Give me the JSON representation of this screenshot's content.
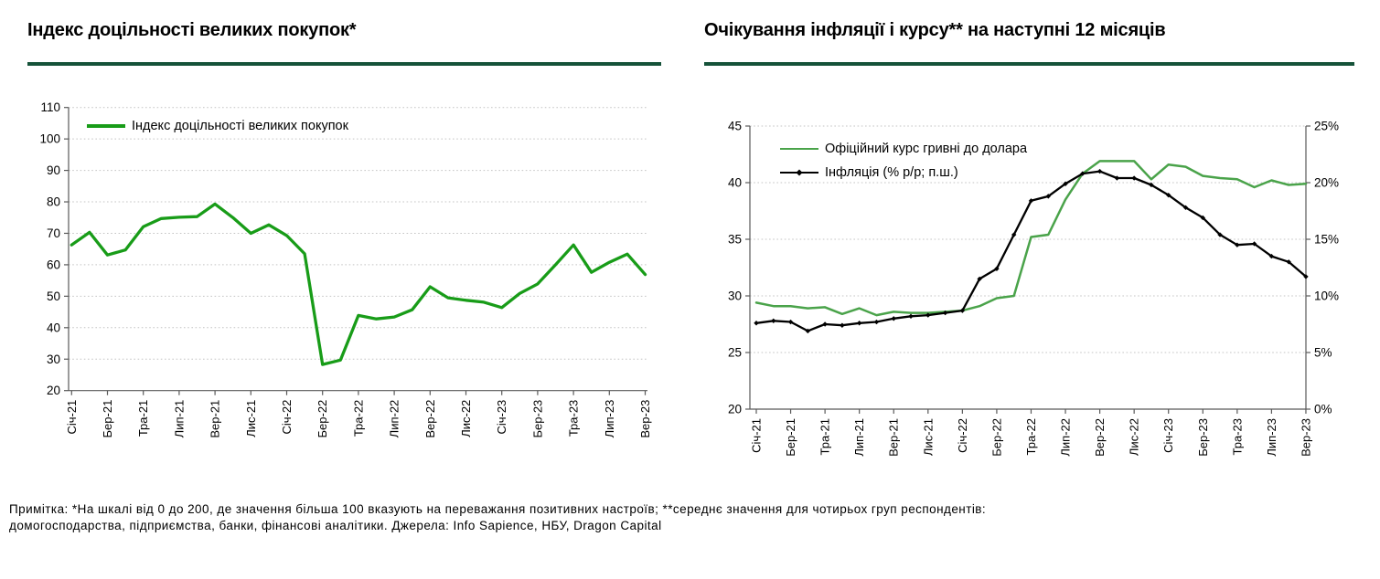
{
  "title_rule_color": "#155239",
  "note": {
    "line1": "Примітка: *На шкалі від 0 до 200, де значення більша 100 вказують на переважання позитивних настроїв; **середнє значення для чотирьох груп респондентів:",
    "line2": "домогосподарства, підприємства, банки, фінансові аналітики. Джерела: Info Sapience, НБУ, Dragon Capital"
  },
  "chart_data": [
    {
      "type": "line",
      "title": "Індекс доцільності великих покупок*",
      "x_frequency": "monthly",
      "x_range": [
        "Січ-21",
        "Вер-23"
      ],
      "x_tick_labels": [
        "Січ-21",
        "Бер-21",
        "Тра-21",
        "Лип-21",
        "Вер-21",
        "Лис-21",
        "Січ-22",
        "Бер-22",
        "Тра-22",
        "Лип-22",
        "Вер-22",
        "Лис-22",
        "Січ-23",
        "Бер-23",
        "Тра-23",
        "Лип-23",
        "Вер-23"
      ],
      "ylim": [
        20,
        110
      ],
      "y_ticks": [
        110,
        100,
        90,
        80,
        70,
        60,
        50,
        40,
        30,
        20
      ],
      "grid": "horizontal-dotted",
      "legend_position": "top-left-inside",
      "series": [
        {
          "name": "Індекс доцільності великих покупок",
          "color": "#189c18",
          "axis": "left",
          "values": [
            66.3,
            70.3,
            63.1,
            64.7,
            72.1,
            74.7,
            75.1,
            75.3,
            79.3,
            75.0,
            70.0,
            72.7,
            69.3,
            63.5,
            28.3,
            29.7,
            43.9,
            42.8,
            43.4,
            45.7,
            53.0,
            49.5,
            48.7,
            48.1,
            46.4,
            50.9,
            53.9,
            60.0,
            66.3,
            57.6,
            60.8,
            63.4,
            56.9
          ]
        }
      ]
    },
    {
      "type": "line",
      "title": "Очікування інфляції і курсу** на наступні 12 місяців",
      "x_frequency": "monthly",
      "x_range": [
        "Січ-21",
        "Вер-23"
      ],
      "x_tick_labels": [
        "Січ-21",
        "Бер-21",
        "Тра-21",
        "Лип-21",
        "Вер-21",
        "Лис-21",
        "Січ-22",
        "Бер-22",
        "Тра-22",
        "Лип-22",
        "Вер-22",
        "Лис-22",
        "Січ-23",
        "Бер-23",
        "Тра-23",
        "Лип-23",
        "Вер-23"
      ],
      "ylim_left": [
        20,
        45
      ],
      "left_y_ticks": [
        45,
        40,
        35,
        30,
        25,
        20
      ],
      "ylim_right": [
        0,
        25
      ],
      "right_y_tick_values": [
        25,
        20,
        15,
        10,
        5,
        0
      ],
      "right_y_tick_labels": [
        "25%",
        "20%",
        "15%",
        "10%",
        "5%",
        "0%"
      ],
      "grid": "horizontal-dotted",
      "legend_position": "top-left-inside",
      "series": [
        {
          "name": "Офіційний курс гривні до долара",
          "color": "#4aa34a",
          "axis": "left",
          "values": [
            29.4,
            29.1,
            29.1,
            28.9,
            29.0,
            28.4,
            28.9,
            28.3,
            28.6,
            28.5,
            28.5,
            28.6,
            28.7,
            29.1,
            29.8,
            30.0,
            35.2,
            35.4,
            38.5,
            40.8,
            41.9,
            41.9,
            41.9,
            40.3,
            41.6,
            41.4,
            40.6,
            40.4,
            40.3,
            39.6,
            40.2,
            39.8,
            39.9
          ]
        },
        {
          "name": "Інфляція (% р/р; п.ш.)",
          "color": "#000000",
          "axis": "right",
          "marker": "diamond",
          "values": [
            7.6,
            7.8,
            7.7,
            6.9,
            7.5,
            7.4,
            7.6,
            7.7,
            8.0,
            8.2,
            8.3,
            8.5,
            8.7,
            11.5,
            12.4,
            15.4,
            18.4,
            18.8,
            19.9,
            20.8,
            21.0,
            20.4,
            20.4,
            19.8,
            18.9,
            17.8,
            16.9,
            15.4,
            14.5,
            14.6,
            13.5,
            13.0,
            11.7
          ]
        }
      ]
    }
  ]
}
